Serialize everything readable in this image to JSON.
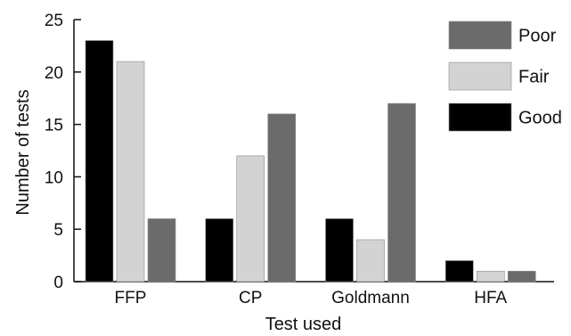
{
  "chart_data": {
    "type": "bar",
    "categories": [
      "FFP",
      "CP",
      "Goldmann",
      "HFA"
    ],
    "series": [
      {
        "name": "Good",
        "values": [
          23,
          6,
          6,
          2
        ],
        "color": "#000000"
      },
      {
        "name": "Fair",
        "values": [
          21,
          12,
          4,
          1
        ],
        "color": "#d3d3d3"
      },
      {
        "name": "Poor",
        "values": [
          6,
          16,
          17,
          1
        ],
        "color": "#6b6b6b"
      }
    ],
    "legend_order": [
      "Poor",
      "Fair",
      "Good"
    ],
    "legend_position": "top-right",
    "xlabel": "Test used",
    "ylabel": "Number of tests",
    "ylim": [
      0,
      25
    ],
    "yticks": [
      0,
      5,
      10,
      15,
      20,
      25
    ],
    "grid": false
  }
}
